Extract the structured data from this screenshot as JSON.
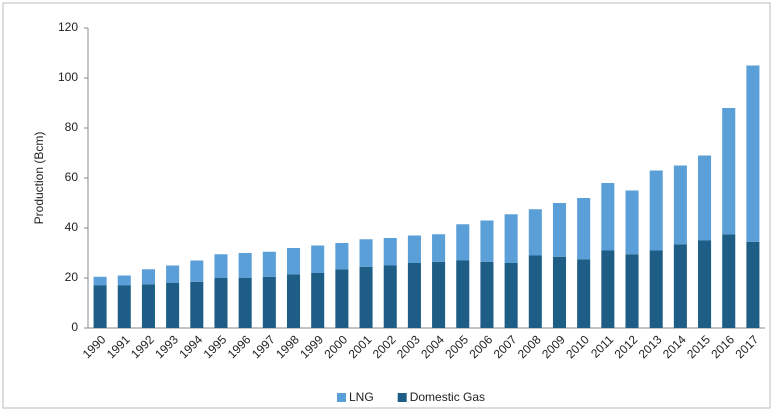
{
  "chart_data": {
    "type": "bar",
    "stacked": true,
    "y_label": "Production (Bcm)",
    "categories": [
      "1990",
      "1991",
      "1992",
      "1993",
      "1994",
      "1995",
      "1996",
      "1997",
      "1998",
      "1999",
      "2000",
      "2001",
      "2002",
      "2003",
      "2004",
      "2005",
      "2006",
      "2007",
      "2008",
      "2009",
      "2010",
      "2011",
      "2012",
      "2013",
      "2014",
      "2015",
      "2016",
      "2017"
    ],
    "series": [
      {
        "name": "LNG",
        "color": "#5b9fd8",
        "values": [
          3.5,
          4,
          6,
          7,
          8.5,
          9.5,
          10,
          10,
          10.5,
          11,
          10.5,
          11,
          11,
          11,
          11,
          14.5,
          16.5,
          19.5,
          18.5,
          21.5,
          24.5,
          27,
          25.5,
          32,
          31.5,
          34,
          50.5,
          70.5
        ]
      },
      {
        "name": "Domestic Gas",
        "color": "#1e5e86",
        "values": [
          17,
          17,
          17.5,
          18,
          18.5,
          20,
          20,
          20.5,
          21.5,
          22,
          23.5,
          24.5,
          25,
          26,
          26.5,
          27,
          26.5,
          26,
          29,
          28.5,
          27.5,
          31,
          29.5,
          31,
          33.5,
          35,
          37.5,
          34.5
        ]
      }
    ],
    "ylim": [
      0,
      120
    ],
    "yticks": [
      0,
      20,
      40,
      60,
      80,
      100,
      120
    ],
    "grid": false,
    "legend": "bottom"
  }
}
